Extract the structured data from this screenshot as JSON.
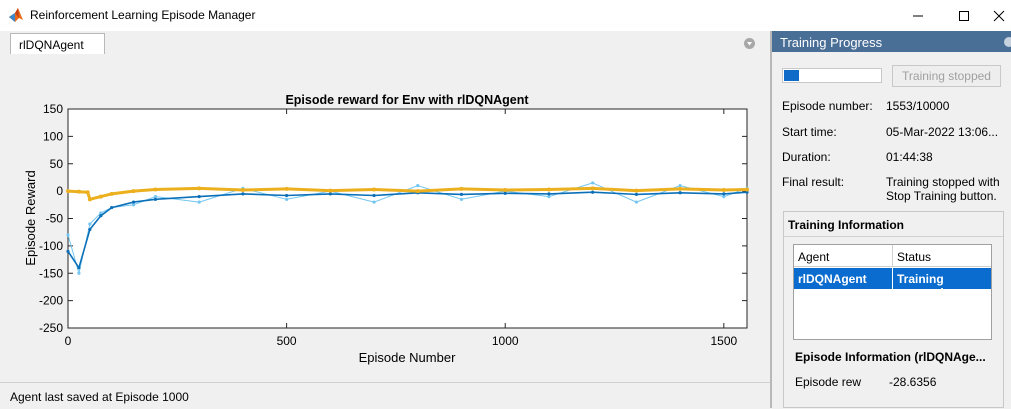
{
  "window": {
    "title": "Reinforcement Learning Episode Manager",
    "icon": "matlab-logo-icon"
  },
  "tabs": [
    {
      "label": "rlDQNAgent"
    }
  ],
  "status_bar": {
    "text": "Agent last saved at Episode 1000"
  },
  "colors": {
    "episode_reward": "#74c6f0",
    "average_reward": "#0c70b8",
    "episode_q0": "#ecb01f",
    "panel_header": "#4a6f97",
    "selection": "#0a6cce"
  },
  "chart_data": {
    "type": "line",
    "title": "Episode reward for Env with rlDQNAgent",
    "xlabel": "Episode Number",
    "ylabel": "Episode Reward",
    "xlim": [
      0,
      1553
    ],
    "ylim": [
      -250,
      150
    ],
    "x_ticks": [
      0,
      500,
      1000,
      1500
    ],
    "y_ticks": [
      -250,
      -200,
      -150,
      -100,
      -50,
      0,
      50,
      100,
      150
    ],
    "grid": false,
    "legend": false,
    "series": [
      {
        "key": "episode_reward",
        "description": "light blue markers, high variance (roughly -110 to +70 after episode 200)",
        "x": [
          0,
          25,
          50,
          75,
          100,
          150,
          200,
          300,
          400,
          500,
          600,
          700,
          800,
          900,
          1000,
          1100,
          1200,
          1300,
          1400,
          1500,
          1553
        ],
        "y": [
          -80,
          -150,
          -60,
          -40,
          -30,
          -25,
          -10,
          -20,
          5,
          -15,
          0,
          -20,
          10,
          -15,
          0,
          -10,
          15,
          -20,
          10,
          -10,
          5
        ]
      },
      {
        "key": "average_reward",
        "description": "dark blue line",
        "x": [
          0,
          25,
          50,
          75,
          100,
          150,
          200,
          300,
          400,
          500,
          600,
          700,
          800,
          900,
          1000,
          1100,
          1200,
          1300,
          1400,
          1500,
          1553
        ],
        "y": [
          -110,
          -140,
          -70,
          -45,
          -30,
          -20,
          -15,
          -10,
          -5,
          -8,
          -5,
          -8,
          -3,
          -6,
          -4,
          -5,
          -2,
          -6,
          -3,
          -5,
          -2
        ]
      },
      {
        "key": "episode_q0",
        "description": "orange/yellow line, near zero",
        "x": [
          0,
          25,
          45,
          50,
          75,
          100,
          150,
          200,
          300,
          400,
          500,
          600,
          700,
          800,
          900,
          1000,
          1100,
          1200,
          1300,
          1400,
          1500,
          1553
        ],
        "y": [
          0,
          -1,
          -2,
          -15,
          -10,
          -5,
          0,
          3,
          5,
          2,
          4,
          1,
          3,
          0,
          4,
          2,
          3,
          5,
          1,
          4,
          2,
          3
        ]
      }
    ]
  },
  "training_progress": {
    "header": "Training Progress",
    "progress_fraction": 0.1553,
    "stop_button_label": "Training stopped",
    "rows": [
      {
        "label": "Episode number:",
        "value": "1553/10000"
      },
      {
        "label": "Start time:",
        "value": "05-Mar-2022 13:06..."
      },
      {
        "label": "Duration:",
        "value": "01:44:38"
      },
      {
        "label": "Final result:",
        "value": "Training stopped with Stop Training button."
      }
    ]
  },
  "training_information": {
    "title": "Training Information",
    "columns": [
      "Agent",
      "Status"
    ],
    "rows": [
      {
        "agent": "rlDQNAgent",
        "status": "Training stopped"
      }
    ]
  },
  "episode_information": {
    "title": "Episode Information (rlDQNAge...",
    "row_label": "Episode rew",
    "row_value": "-28.6356"
  }
}
